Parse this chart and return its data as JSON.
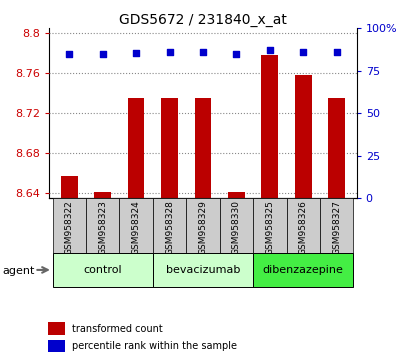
{
  "title": "GDS5672 / 231840_x_at",
  "samples": [
    "GSM958322",
    "GSM958323",
    "GSM958324",
    "GSM958328",
    "GSM958329",
    "GSM958330",
    "GSM958325",
    "GSM958326",
    "GSM958327"
  ],
  "bar_values": [
    8.657,
    8.641,
    8.735,
    8.735,
    8.735,
    8.641,
    8.778,
    8.758,
    8.735
  ],
  "percentile_values": [
    85,
    85,
    85.5,
    86,
    86,
    85,
    87,
    86,
    86
  ],
  "ylim_left": [
    8.635,
    8.805
  ],
  "ylim_right": [
    0,
    100
  ],
  "yticks_left": [
    8.64,
    8.68,
    8.72,
    8.76,
    8.8
  ],
  "yticks_right": [
    0,
    25,
    50,
    75,
    100
  ],
  "bar_color": "#bb0000",
  "dot_color": "#0000cc",
  "group_positions": [
    [
      0,
      2,
      "control",
      "#ccffcc"
    ],
    [
      3,
      5,
      "bevacizumab",
      "#ccffcc"
    ],
    [
      6,
      8,
      "dibenzazepine",
      "#44ee44"
    ]
  ],
  "legend_items": [
    {
      "label": "transformed count",
      "color": "#bb0000"
    },
    {
      "label": "percentile rank within the sample",
      "color": "#0000cc"
    }
  ],
  "grid_color": "#888888",
  "sample_box_color": "#cccccc"
}
